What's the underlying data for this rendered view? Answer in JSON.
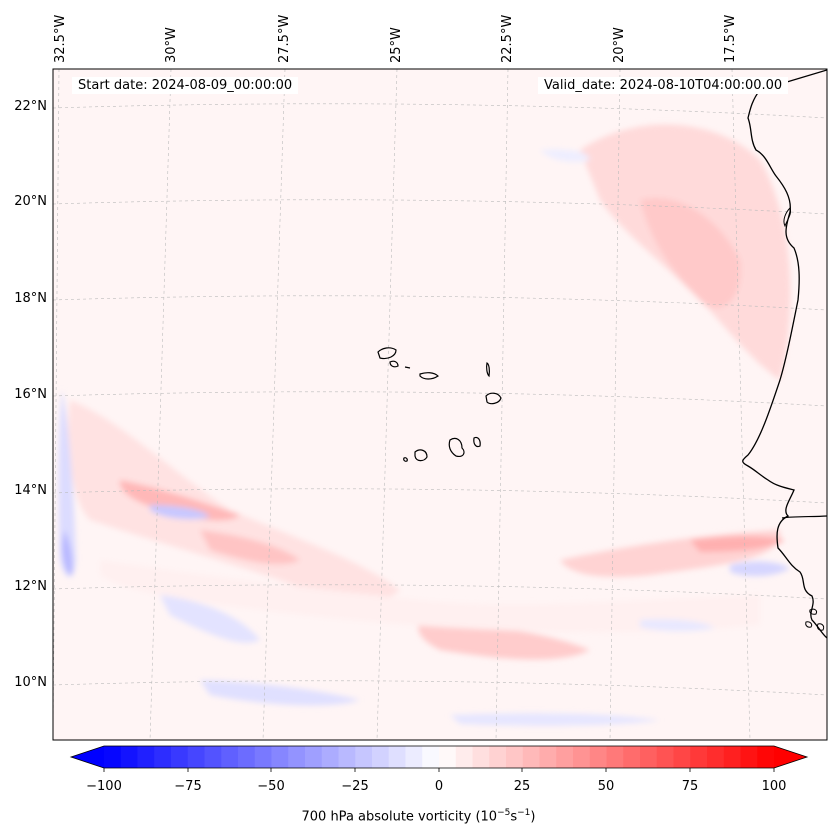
{
  "header": {
    "start_label": "Start date: 2024-08-09_00:00:00",
    "valid_label": "Valid_date: 2024-08-10T04:00:00.00"
  },
  "map": {
    "projection": "lambert",
    "lon_ticks": [
      "32.5°W",
      "30°W",
      "27.5°W",
      "25°W",
      "22.5°W",
      "20°W",
      "17.5°W"
    ],
    "lat_ticks": [
      "22°N",
      "20°N",
      "18°N",
      "16°N",
      "14°N",
      "12°N",
      "10°N"
    ],
    "field": "700 hPa absolute vorticity"
  },
  "colorbar": {
    "ticks": [
      "−100",
      "−75",
      "−50",
      "−25",
      "0",
      "25",
      "50",
      "75",
      "100"
    ],
    "min": -100,
    "max": 100,
    "levels": 41,
    "low_color": "#0000ff",
    "mid_color": "#ffffff",
    "high_color": "#ff0000",
    "label": "700 hPa absolute vorticity (10",
    "label_exp1": "−5",
    "label_mid": "s",
    "label_exp2": "−1",
    "label_end": ")"
  }
}
